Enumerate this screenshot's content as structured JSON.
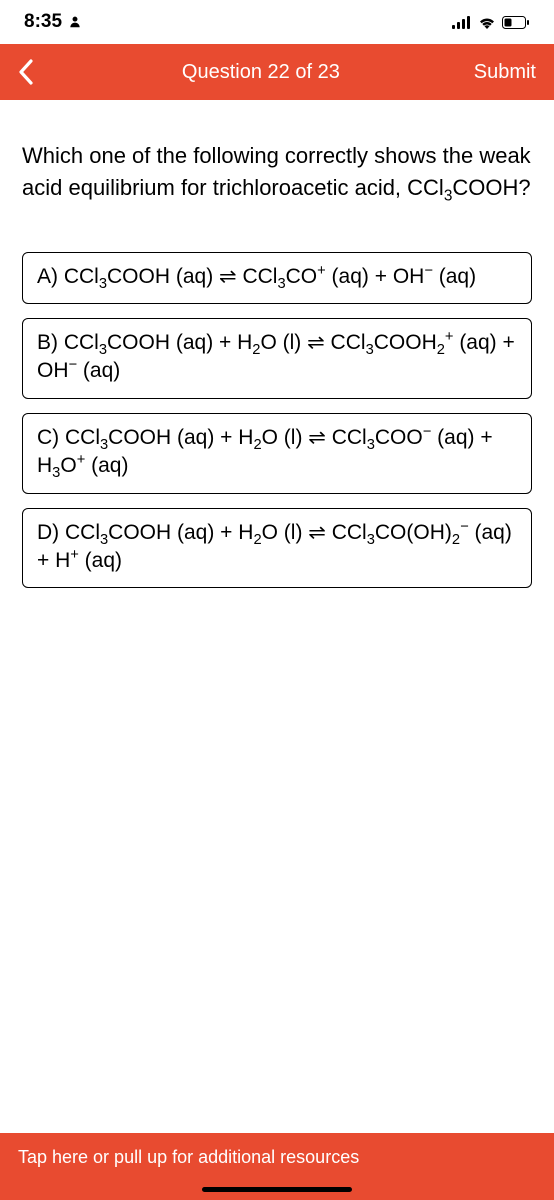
{
  "status_bar": {
    "time": "8:35"
  },
  "header": {
    "title": "Question 22 of 23",
    "submit_label": "Submit",
    "bg_color": "#e84b30",
    "text_color": "#ffffff"
  },
  "question": {
    "text": "Which one of the following correctly shows the weak acid equilibrium for trichloroacetic acid, CCl₃COOH?"
  },
  "options": [
    {
      "letter": "A",
      "html": "A) CCl<sub>3</sub>COOH (aq) ⇌ CCl<sub>3</sub>CO<sup>+</sup> (aq) + OH<sup>−</sup> (aq)"
    },
    {
      "letter": "B",
      "html": "B) CCl<sub>3</sub>COOH (aq) + H<sub>2</sub>O (l) ⇌ CCl<sub>3</sub>COOH<sub>2</sub><sup>+</sup> (aq) + OH<sup>−</sup> (aq)"
    },
    {
      "letter": "C",
      "html": "C) CCl<sub>3</sub>COOH (aq) + H<sub>2</sub>O (l) ⇌ CCl<sub>3</sub>COO<sup>−</sup> (aq) + H<sub>3</sub>O<sup>+</sup> (aq)"
    },
    {
      "letter": "D",
      "html": "D) CCl<sub>3</sub>COOH (aq) + H<sub>2</sub>O (l) ⇌ CCl<sub>3</sub>CO(OH)<sub>2</sub><sup>−</sup> (aq) + H<sup>+</sup> (aq)"
    }
  ],
  "bottom_bar": {
    "text": "Tap here or pull up for additional resources",
    "bg_color": "#e84b30"
  },
  "styling": {
    "option_border_color": "#000000",
    "option_border_radius": 6,
    "body_bg": "#ffffff",
    "question_font_size": 22,
    "option_font_size": 21
  }
}
